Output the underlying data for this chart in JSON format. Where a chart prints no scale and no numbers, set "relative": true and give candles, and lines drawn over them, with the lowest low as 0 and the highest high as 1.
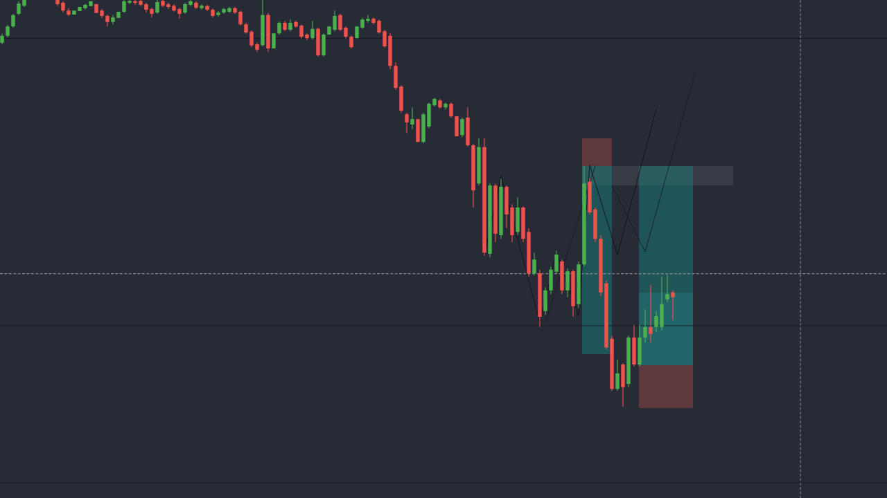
{
  "chart_data": {
    "type": "candlestick",
    "relative": true,
    "categories": [
      null,
      null,
      null,
      null,
      null,
      null,
      null,
      null,
      null,
      null,
      null,
      null,
      null,
      null,
      null,
      null,
      null,
      null,
      null,
      null,
      null,
      null,
      null,
      null,
      null,
      null,
      null,
      null,
      null,
      null,
      null,
      null,
      null,
      null,
      null,
      null,
      null,
      null,
      null,
      null,
      null,
      null,
      null,
      null,
      null,
      null,
      null,
      null,
      null,
      null,
      null,
      null,
      null,
      null,
      null,
      null,
      null,
      null,
      null,
      null,
      null,
      null,
      null,
      null,
      null,
      null,
      null,
      null,
      null,
      null,
      null,
      null,
      null,
      null,
      null,
      null,
      null,
      null,
      null,
      null,
      null,
      null,
      null,
      null,
      null,
      null,
      null,
      null,
      null,
      null,
      null,
      null,
      null,
      null,
      null,
      null,
      null,
      null,
      null,
      null,
      null,
      null,
      null,
      null,
      null,
      null,
      null,
      null,
      null,
      null,
      null,
      null,
      null,
      null,
      null,
      null,
      null,
      null,
      null,
      null,
      null,
      null,
      null,
      null,
      null,
      null
    ],
    "ohlc": [
      [
        0.895,
        0.917,
        0.891,
        0.912
      ],
      [
        0.912,
        0.939,
        0.908,
        0.935
      ],
      [
        0.935,
        0.966,
        0.932,
        0.963
      ],
      [
        0.966,
        0.997,
        0.963,
        0.991
      ],
      [
        0.986,
        1,
        0.983,
        1
      ],
      null,
      null,
      null,
      null,
      null,
      [
        1,
        1,
        0.985,
        0.99
      ],
      [
        0.993,
        0.997,
        0.969,
        0.974
      ],
      [
        0.974,
        0.98,
        0.961,
        0.964
      ],
      [
        0.964,
        0.974,
        0.964,
        0.974
      ],
      [
        0.973,
        0.983,
        0.973,
        0.983
      ],
      [
        0.98,
        0.991,
        0.976,
        0.988
      ],
      [
        0.985,
        0.997,
        0.985,
        0.997
      ],
      [
        0.99,
        0.99,
        0.968,
        0.968
      ],
      [
        0.974,
        0.978,
        0.956,
        0.961
      ],
      [
        0.961,
        0.964,
        0.935,
        0.946
      ],
      [
        0.946,
        0.963,
        0.94,
        0.957
      ],
      [
        0.956,
        0.971,
        0.956,
        0.971
      ],
      [
        0.971,
        1,
        0.968,
        0.997
      ],
      [
        0.993,
        1,
        0.99,
        0.998
      ],
      [
        0.997,
        1,
        0.988,
        0.993
      ],
      [
        0.998,
        1,
        0.985,
        0.988
      ],
      [
        0.99,
        0.993,
        0.969,
        0.976
      ],
      [
        0.978,
        0.981,
        0.957,
        0.966
      ],
      [
        0.969,
        1,
        0.966,
        0.995
      ],
      [
        0.998,
        1,
        0.983,
        0.986
      ],
      [
        0.99,
        0.993,
        0.978,
        0.983
      ],
      [
        0.986,
        0.99,
        0.971,
        0.974
      ],
      [
        0.978,
        0.981,
        0.954,
        0.966
      ],
      [
        0.969,
        0.993,
        0.966,
        0.99
      ],
      [
        0.988,
        1,
        0.985,
        0.997
      ],
      [
        0.993,
        0.997,
        0.978,
        0.981
      ],
      [
        0.98,
        0.99,
        0.976,
        0.986
      ],
      [
        0.985,
        0.988,
        0.973,
        0.976
      ],
      [
        0.976,
        0.98,
        0.957,
        0.961
      ],
      [
        0.963,
        0.973,
        0.959,
        0.969
      ],
      [
        0.969,
        0.981,
        0.966,
        0.978
      ],
      [
        0.971,
        0.983,
        0.968,
        0.98
      ],
      [
        0.98,
        0.983,
        0.966,
        0.969
      ],
      [
        0.971,
        0.974,
        0.937,
        0.94
      ],
      [
        0.94,
        0.944,
        0.917,
        0.92
      ],
      [
        0.922,
        0.925,
        0.884,
        0.888
      ],
      [
        0.891,
        0.895,
        0.872,
        0.878
      ],
      [
        0.889,
        1,
        0.886,
        0.963
      ],
      [
        0.963,
        0.968,
        0.872,
        0.881
      ],
      [
        0.881,
        0.918,
        0.881,
        0.918
      ],
      [
        0.918,
        0.947,
        0.915,
        0.944
      ],
      [
        0.944,
        0.949,
        0.923,
        0.927
      ],
      [
        0.927,
        0.952,
        0.923,
        0.944
      ],
      [
        0.946,
        0.949,
        0.932,
        0.935
      ],
      [
        0.937,
        0.94,
        0.905,
        0.91
      ],
      [
        0.915,
        0.918,
        0.901,
        0.906
      ],
      [
        0.906,
        0.949,
        0.903,
        0.929
      ],
      [
        0.929,
        0.932,
        0.861,
        0.864
      ],
      [
        0.864,
        0.918,
        0.861,
        0.915
      ],
      [
        0.915,
        0.935,
        0.915,
        0.935
      ],
      [
        0.927,
        0.974,
        0.923,
        0.961
      ],
      [
        0.963,
        0.966,
        0.923,
        0.927
      ],
      [
        0.932,
        0.935,
        0.905,
        0.91
      ],
      [
        0.91,
        0.913,
        0.881,
        0.884
      ],
      [
        0.906,
        0.935,
        0.906,
        0.935
      ],
      [
        0.932,
        0.956,
        0.929,
        0.952
      ],
      [
        0.949,
        0.963,
        0.944,
        0.954
      ],
      [
        0.954,
        0.957,
        0.94,
        0.944
      ],
      [
        0.949,
        0.952,
        0.917,
        0.92
      ],
      [
        0.923,
        0.927,
        0.883,
        0.886
      ],
      [
        0.912,
        0.918,
        0.83,
        0.838
      ],
      [
        0.838,
        0.847,
        0.779,
        0.784
      ],
      [
        0.787,
        0.791,
        0.723,
        0.728
      ],
      [
        0.719,
        0.723,
        0.673,
        0.699
      ],
      [
        0.694,
        0.736,
        0.682,
        0.707
      ],
      [
        0.707,
        0.707,
        0.651,
        0.651
      ],
      [
        0.651,
        0.723,
        0.648,
        0.719
      ],
      [
        0.689,
        0.748,
        0.685,
        0.745
      ],
      [
        0.741,
        0.76,
        0.738,
        0.757
      ],
      [
        0.753,
        0.757,
        0.733,
        0.736
      ],
      [
        0.736,
        0.748,
        0.731,
        0.745
      ],
      [
        0.745,
        0.748,
        0.711,
        0.714
      ],
      [
        0.714,
        0.714,
        0.665,
        0.665
      ],
      [
        0.668,
        0.711,
        0.663,
        0.707
      ],
      [
        0.711,
        0.736,
        0.639,
        0.643
      ],
      [
        0.643,
        0.646,
        0.49,
        0.532
      ],
      [
        0.549,
        0.66,
        0.544,
        0.638
      ],
      [
        0.638,
        0.66,
        0.371,
        0.379
      ],
      [
        0.376,
        0.549,
        0.367,
        0.544
      ],
      [
        0.544,
        0.548,
        0.405,
        0.425
      ],
      [
        0.422,
        0.561,
        0.413,
        0.541
      ],
      [
        0.541,
        0.544,
        0.439,
        0.473
      ],
      [
        0.49,
        0.498,
        0.405,
        0.422
      ],
      [
        0.43,
        0.515,
        0.422,
        0.49
      ],
      [
        0.49,
        0.493,
        0.405,
        0.413
      ],
      [
        0.43,
        0.439,
        0.32,
        0.328
      ],
      [
        0.328,
        0.379,
        0.323,
        0.362
      ],
      [
        0.328,
        0.337,
        0.196,
        0.221
      ],
      [
        0.235,
        0.294,
        0.226,
        0.286
      ],
      [
        0.286,
        0.345,
        0.277,
        0.337
      ],
      [
        0.332,
        0.384,
        0.327,
        0.374
      ],
      [
        0.357,
        0.362,
        0.277,
        0.286
      ],
      [
        0.286,
        0.34,
        0.269,
        0.333
      ],
      [
        0.333,
        0.337,
        0.221,
        0.247
      ],
      [
        0.252,
        0.357,
        0.243,
        0.35
      ],
      [
        0.35,
        0.592,
        0.345,
        0.549
      ],
      [
        0.553,
        0.561,
        0.473,
        0.478
      ],
      [
        0.485,
        0.49,
        0.405,
        0.413
      ],
      [
        0.413,
        0.422,
        0.272,
        0.281
      ],
      [
        0.303,
        0.311,
        0.141,
        0.146
      ],
      [
        0.167,
        0.175,
        0.039,
        0.044
      ],
      [
        0.044,
        0.116,
        0.039,
        0.082
      ],
      [
        0.104,
        0.107,
        0,
        0.048
      ],
      [
        0.056,
        0.175,
        0.048,
        0.17
      ],
      [
        0.17,
        0.201,
        0.099,
        0.104
      ],
      [
        0.104,
        0.201,
        0.099,
        0.17
      ],
      [
        0.17,
        0.24,
        0.158,
        0.196
      ],
      [
        0.196,
        0.299,
        0.158,
        0.179
      ],
      [
        0.196,
        0.235,
        0.184,
        0.223
      ],
      [
        0.196,
        0.32,
        0.187,
        0.252
      ],
      [
        0.264,
        0.325,
        0.257,
        0.277
      ],
      [
        0.281,
        0.286,
        0.213,
        0.269
      ],
      null,
      null,
      null,
      null
    ],
    "colors": [
      "#4caf50",
      "#4caf50",
      "#4caf50",
      "#4caf50",
      "#4caf50",
      null,
      null,
      null,
      null,
      null,
      "#ef5350",
      "#ef5350",
      "#ef5350",
      "#4caf50",
      "#4caf50",
      "#4caf50",
      "#4caf50",
      "#ef5350",
      "#ef5350",
      "#ef5350",
      "#4caf50",
      "#4caf50",
      "#4caf50",
      "#4caf50",
      "#ef5350",
      "#ef5350",
      "#ef5350",
      "#ef5350",
      "#4caf50",
      "#ef5350",
      "#ef5350",
      "#ef5350",
      "#ef5350",
      "#4caf50",
      "#4caf50",
      "#ef5350",
      "#4caf50",
      "#ef5350",
      "#ef5350",
      "#4caf50",
      "#4caf50",
      "#4caf50",
      "#ef5350",
      "#ef5350",
      "#ef5350",
      "#ef5350",
      "#ef5350",
      "#4caf50",
      "#ef5350",
      "#4caf50",
      "#4caf50",
      "#ef5350",
      "#4caf50",
      "#ef5350",
      "#ef5350",
      "#ef5350",
      "#4caf50",
      "#ef5350",
      "#4caf50",
      "#4caf50",
      "#4caf50",
      "#ef5350",
      "#ef5350",
      "#ef5350",
      "#4caf50",
      "#4caf50",
      "#4caf50",
      "#ef5350",
      "#ef5350",
      "#ef5350",
      "#ef5350",
      "#ef5350",
      "#ef5350",
      "#ef5350",
      "#4caf50",
      "#ef5350",
      "#4caf50",
      "#4caf50",
      "#4caf50",
      "#ef5350",
      "#4caf50",
      "#ef5350",
      "#ef5350",
      "#4caf50",
      "#ef5350",
      "#ef5350",
      "#4caf50",
      "#ef5350",
      "#4caf50",
      "#ef5350",
      "#4caf50",
      "#ef5350",
      "#ef5350",
      "#4caf50",
      "#ef5350",
      "#ef5350",
      "#4caf50",
      "#ef5350",
      "#4caf50",
      "#4caf50",
      "#4caf50",
      "#ef5350",
      "#4caf50",
      "#ef5350",
      "#4caf50",
      "#4caf50",
      "#ef5350",
      "#ef5350",
      "#ef5350",
      "#ef5350",
      "#ef5350",
      "#4caf50",
      "#ef5350",
      "#4caf50",
      "#ef5350",
      "#4caf50",
      "#4caf50",
      "#ef5350",
      "#4caf50",
      "#4caf50",
      "#4caf50",
      "#ef5350",
      null,
      null,
      null,
      null
    ],
    "series": [
      {
        "type": "line",
        "color": "#0f1115",
        "values": [
          null,
          null,
          null,
          null,
          null,
          null,
          null,
          null,
          null,
          null,
          null,
          null,
          null,
          null,
          null,
          null,
          null,
          null,
          null,
          null,
          null,
          null,
          null,
          null,
          null,
          null,
          null,
          null,
          null,
          null,
          null,
          null,
          null,
          null,
          null,
          null,
          null,
          null,
          null,
          null,
          null,
          null,
          null,
          null,
          null,
          null,
          null,
          null,
          null,
          null,
          null,
          null,
          null,
          null,
          null,
          null,
          null,
          null,
          null,
          null,
          null,
          null,
          null,
          null,
          null,
          null,
          null,
          null,
          null,
          null,
          null,
          null,
          null,
          null,
          null,
          null,
          null,
          null,
          null,
          null,
          null,
          null,
          null,
          null,
          null,
          null,
          null,
          0.371,
          0.437,
          0.502,
          0.568,
          0.516,
          0.465,
          0.413,
          0.362,
          0.31,
          0.259,
          0.207,
          0.265,
          0.323,
          0.381,
          0.342,
          0.302,
          0.263,
          0.223,
          0.409,
          0.594,
          0.55,
          0.506,
          0.462,
          0.418,
          0.374,
          0.425,
          0.476,
          0.527,
          0.578,
          0.629,
          0.68,
          0.731,
          null,
          null,
          null,
          null,
          null,
          null,
          null
        ]
      },
      {
        "type": "line",
        "color": "#191c22",
        "values": [
          null,
          null,
          null,
          null,
          null,
          null,
          null,
          null,
          null,
          null,
          null,
          null,
          null,
          null,
          null,
          null,
          null,
          null,
          null,
          null,
          null,
          null,
          null,
          null,
          null,
          null,
          null,
          null,
          null,
          null,
          null,
          null,
          null,
          null,
          null,
          null,
          null,
          null,
          null,
          null,
          null,
          null,
          null,
          null,
          null,
          null,
          null,
          null,
          null,
          null,
          null,
          null,
          null,
          null,
          null,
          null,
          null,
          null,
          null,
          null,
          null,
          null,
          null,
          null,
          null,
          null,
          null,
          null,
          null,
          null,
          null,
          null,
          null,
          null,
          null,
          null,
          null,
          null,
          null,
          null,
          null,
          null,
          null,
          null,
          null,
          null,
          null,
          null,
          null,
          null,
          null,
          null,
          null,
          null,
          null,
          null,
          null,
          null,
          0.207,
          0.25,
          0.293,
          0.335,
          0.378,
          0.421,
          0.464,
          0.507,
          0.549,
          0.592,
          null,
          null,
          0.544,
          0.517,
          0.49,
          0.463,
          0.435,
          0.408,
          0.381,
          0.43,
          0.479,
          0.528,
          0.577,
          0.625,
          0.674,
          0.723,
          0.772,
          0.821
        ]
      }
    ],
    "ref_lines": [
      {
        "axis": "y",
        "value": 0.906,
        "color": "#14161c"
      },
      {
        "axis": "y",
        "value": 0.199,
        "color": "#14161c"
      },
      {
        "axis": "y",
        "value": 0.327,
        "color": "#9a9ea8",
        "line_style": "dashed"
      }
    ]
  }
}
